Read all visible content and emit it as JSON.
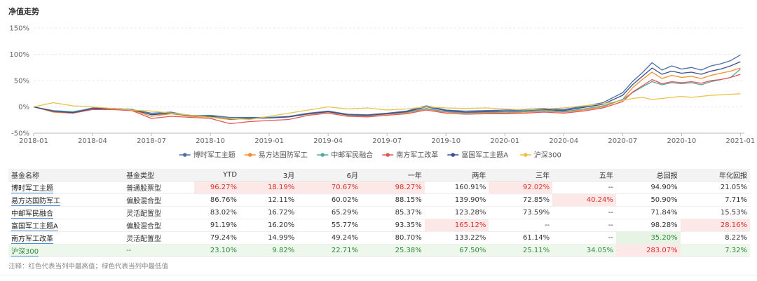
{
  "section_title": "净值走势",
  "chart_data": {
    "type": "line",
    "title": "",
    "xlabel": "",
    "ylabel": "",
    "ylim": [
      -50,
      150
    ],
    "y_ticks": [
      "150%",
      "100%",
      "50%",
      "0%",
      "-50%"
    ],
    "y_tick_values": [
      150,
      100,
      50,
      0,
      -50
    ],
    "x_ticks": [
      "2018-01",
      "2018-04",
      "2018-07",
      "2018-10",
      "2019-01",
      "2019-04",
      "2019-07",
      "2019-10",
      "2020-01",
      "2020-04",
      "2020-07",
      "2020-10",
      "2021-01"
    ],
    "x_tick_values": [
      0,
      3,
      6,
      9,
      12,
      15,
      18,
      21,
      24,
      27,
      30,
      33,
      36
    ],
    "xlim": [
      0,
      36.2
    ],
    "grid": true,
    "legend_position": "bottom",
    "x": [
      0,
      1,
      2,
      3,
      4,
      5,
      6,
      7,
      8,
      9,
      10,
      11,
      12,
      13,
      14,
      15,
      16,
      17,
      18,
      19,
      20,
      21,
      22,
      23,
      24,
      25,
      26,
      27,
      28,
      29,
      30,
      30.5,
      31,
      31.5,
      32,
      32.5,
      33,
      33.5,
      34,
      34.5,
      35,
      35.5,
      36
    ],
    "series": [
      {
        "name": "博时军工主题",
        "color": "#4a6fa5",
        "values": [
          0,
          -8,
          -10,
          -2,
          -3,
          -5,
          -12,
          -10,
          -17,
          -16,
          -20,
          -20,
          -20,
          -18,
          -12,
          -8,
          -14,
          -15,
          -12,
          -8,
          2,
          -6,
          -8,
          -7,
          -6,
          -5,
          -3,
          -5,
          1,
          8,
          27,
          48,
          65,
          84,
          70,
          78,
          72,
          75,
          70,
          78,
          82,
          88,
          99
        ]
      },
      {
        "name": "易方达国防军工",
        "color": "#f28e2b",
        "values": [
          0,
          -10,
          -12,
          -4,
          -4,
          -6,
          -18,
          -13,
          -18,
          -20,
          -24,
          -22,
          -21,
          -19,
          -14,
          -10,
          -16,
          -17,
          -14,
          -11,
          -4,
          -10,
          -12,
          -11,
          -12,
          -10,
          -8,
          -10,
          -6,
          0,
          14,
          36,
          52,
          66,
          54,
          60,
          56,
          58,
          54,
          60,
          64,
          68,
          74
        ]
      },
      {
        "name": "中邮军民融合",
        "color": "#59a5a0",
        "values": [
          0,
          -7,
          -9,
          -3,
          -4,
          -5,
          -14,
          -11,
          -16,
          -17,
          -22,
          -22,
          -20,
          -19,
          -13,
          -9,
          -15,
          -16,
          -13,
          -10,
          -3,
          -9,
          -11,
          -10,
          -10,
          -9,
          -7,
          -9,
          -4,
          2,
          14,
          27,
          38,
          48,
          42,
          46,
          44,
          46,
          42,
          48,
          52,
          56,
          72
        ]
      },
      {
        "name": "南方军工改革",
        "color": "#e15759",
        "values": [
          0,
          -9,
          -12,
          -5,
          -5,
          -7,
          -22,
          -18,
          -20,
          -22,
          -32,
          -28,
          -26,
          -24,
          -16,
          -12,
          -18,
          -19,
          -16,
          -13,
          -6,
          -12,
          -14,
          -13,
          -13,
          -12,
          -10,
          -12,
          -8,
          -2,
          10,
          28,
          40,
          52,
          44,
          48,
          46,
          48,
          45,
          50,
          52,
          56,
          62
        ]
      },
      {
        "name": "富国军工主题A",
        "color": "#3b4f8f",
        "values": [
          0,
          -8,
          -11,
          -3,
          -3,
          -5,
          -15,
          -12,
          -17,
          -18,
          -23,
          -22,
          -21,
          -19,
          -13,
          -9,
          -15,
          -16,
          -13,
          -9,
          0,
          -7,
          -10,
          -9,
          -8,
          -7,
          -5,
          -7,
          -1,
          5,
          22,
          42,
          58,
          74,
          62,
          68,
          64,
          66,
          62,
          68,
          72,
          78,
          86
        ]
      },
      {
        "name": "沪深300",
        "color": "#e8c24a",
        "values": [
          0,
          8,
          2,
          0,
          -3,
          -6,
          -8,
          -12,
          -16,
          -20,
          -22,
          -24,
          -18,
          -12,
          -6,
          0,
          -4,
          -2,
          -6,
          -4,
          0,
          -2,
          -3,
          -2,
          -4,
          -6,
          -4,
          -2,
          2,
          6,
          12,
          16,
          18,
          14,
          16,
          18,
          20,
          18,
          20,
          22,
          23,
          24,
          25
        ]
      }
    ]
  },
  "table": {
    "headers": [
      "基金名称",
      "基金类型",
      "YTD",
      "3月",
      "6月",
      "一年",
      "两年",
      "三年",
      "五年",
      "总回报",
      "年化回报"
    ],
    "rows": [
      {
        "name": "博时军工主题",
        "type": "普通股票型",
        "cells": [
          "96.27%",
          "18.19%",
          "70.67%",
          "98.27%",
          "160.91%",
          "92.02%",
          "--",
          "94.90%",
          "21.05%"
        ],
        "hl": [
          "hi",
          "hi",
          "hi",
          "hi",
          "",
          "hi",
          "",
          "",
          ""
        ]
      },
      {
        "name": "易方达国防军工",
        "type": "偏股混合型",
        "cells": [
          "86.76%",
          "12.11%",
          "60.02%",
          "88.15%",
          "139.90%",
          "72.85%",
          "40.24%",
          "50.90%",
          "7.71%"
        ],
        "hl": [
          "",
          "",
          "",
          "",
          "",
          "",
          "hi",
          "",
          ""
        ]
      },
      {
        "name": "中邮军民融合",
        "type": "灵活配置型",
        "cells": [
          "83.02%",
          "16.72%",
          "65.29%",
          "85.37%",
          "123.28%",
          "73.59%",
          "--",
          "71.84%",
          "15.53%"
        ],
        "hl": [
          "",
          "",
          "",
          "",
          "",
          "",
          "",
          "",
          ""
        ]
      },
      {
        "name": "富国军工主题A",
        "type": "偏股混合型",
        "cells": [
          "91.19%",
          "16.20%",
          "55.77%",
          "93.35%",
          "165.12%",
          "--",
          "--",
          "98.28%",
          "28.16%"
        ],
        "hl": [
          "",
          "",
          "",
          "",
          "hi",
          "",
          "",
          "",
          "hi"
        ]
      },
      {
        "name": "南方军工改革",
        "type": "灵活配置型",
        "cells": [
          "79.24%",
          "14.99%",
          "49.24%",
          "80.70%",
          "133.22%",
          "61.14%",
          "--",
          "35.20%",
          "8.22%"
        ],
        "hl": [
          "",
          "",
          "",
          "",
          "",
          "",
          "",
          "lo",
          ""
        ]
      },
      {
        "name": "沪深300",
        "type": "--",
        "cells": [
          "23.10%",
          "9.82%",
          "22.71%",
          "25.38%",
          "67.50%",
          "25.11%",
          "34.05%",
          "283.07%",
          "7.32%"
        ],
        "hl": [
          "",
          "",
          "",
          "",
          "",
          "",
          "",
          "hi",
          ""
        ],
        "bench": true
      }
    ]
  },
  "note": "注释：红色代表当列中最高值；绿色代表当列中最低值"
}
